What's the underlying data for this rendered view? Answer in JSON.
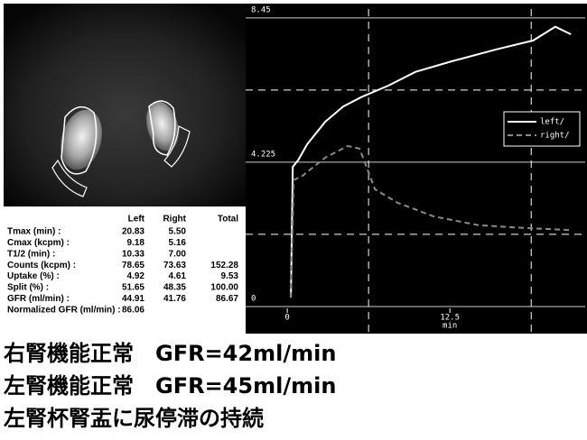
{
  "chart_data": {
    "type": "line",
    "x_label": "min",
    "xlim": [
      -3.2,
      22.9
    ],
    "xticks": [
      0,
      12.5
    ],
    "ylim": [
      -0.74,
      8.71
    ],
    "yticks": [
      0,
      4.225,
      8.45
    ],
    "grid": true,
    "dashed_grid": {
      "x": [
        6.25,
        18.75
      ],
      "y": [
        2.1125,
        6.3375
      ]
    },
    "legend": "upper right",
    "series": [
      {
        "name": "left/",
        "color": "#ffffff",
        "line_style": "solid",
        "x": [
          0.28,
          0.42,
          0.83,
          1.53,
          2.92,
          4.31,
          5.69,
          7.78,
          9.86,
          12.64,
          16.1,
          18.9,
          20.6,
          21.8
        ],
        "values": [
          0.26,
          4.09,
          4.28,
          4.75,
          5.41,
          5.86,
          6.13,
          6.47,
          6.87,
          7.18,
          7.53,
          7.79,
          8.19,
          7.97
        ]
      },
      {
        "name": "right/",
        "color": "#8a8a8a",
        "line_style": "dashed",
        "x": [
          0.28,
          0.49,
          1.18,
          2.92,
          4.65,
          5.56,
          6.74,
          8.47,
          11.25,
          14.72,
          18.19,
          21.67
        ],
        "values": [
          0.26,
          3.7,
          3.83,
          4.36,
          4.7,
          4.62,
          3.43,
          3.04,
          2.64,
          2.38,
          2.3,
          2.24
        ]
      }
    ]
  },
  "table": {
    "header": [
      "Left",
      "Right",
      "Total"
    ],
    "rows": [
      [
        "Tmax (min) :",
        "20.83",
        "5.50",
        null
      ],
      [
        "Cmax (kcpm) :",
        "9.18",
        "5.16",
        null
      ],
      [
        "T1/2 (min) :",
        "10.33",
        "7.00",
        null
      ],
      [
        "Counts (kcpm) :",
        "78.65",
        "73.63",
        "152.28"
      ],
      [
        "Uptake (%) :",
        "4.92",
        "4.61",
        "9.53"
      ],
      [
        "Split (%) :",
        "51.65",
        "48.35",
        "100.00"
      ],
      [
        "GFR (ml/min) :",
        "44.91",
        "41.76",
        "86.67"
      ],
      [
        "Normalized GFR (ml/min) :",
        "86.06",
        null,
        null
      ]
    ]
  },
  "captions": [
    "右腎機能正常　GFR=42ml/min",
    "左腎機能正常　GFR=45ml/min",
    "左腎杯腎盂に尿停滞の持続"
  ]
}
